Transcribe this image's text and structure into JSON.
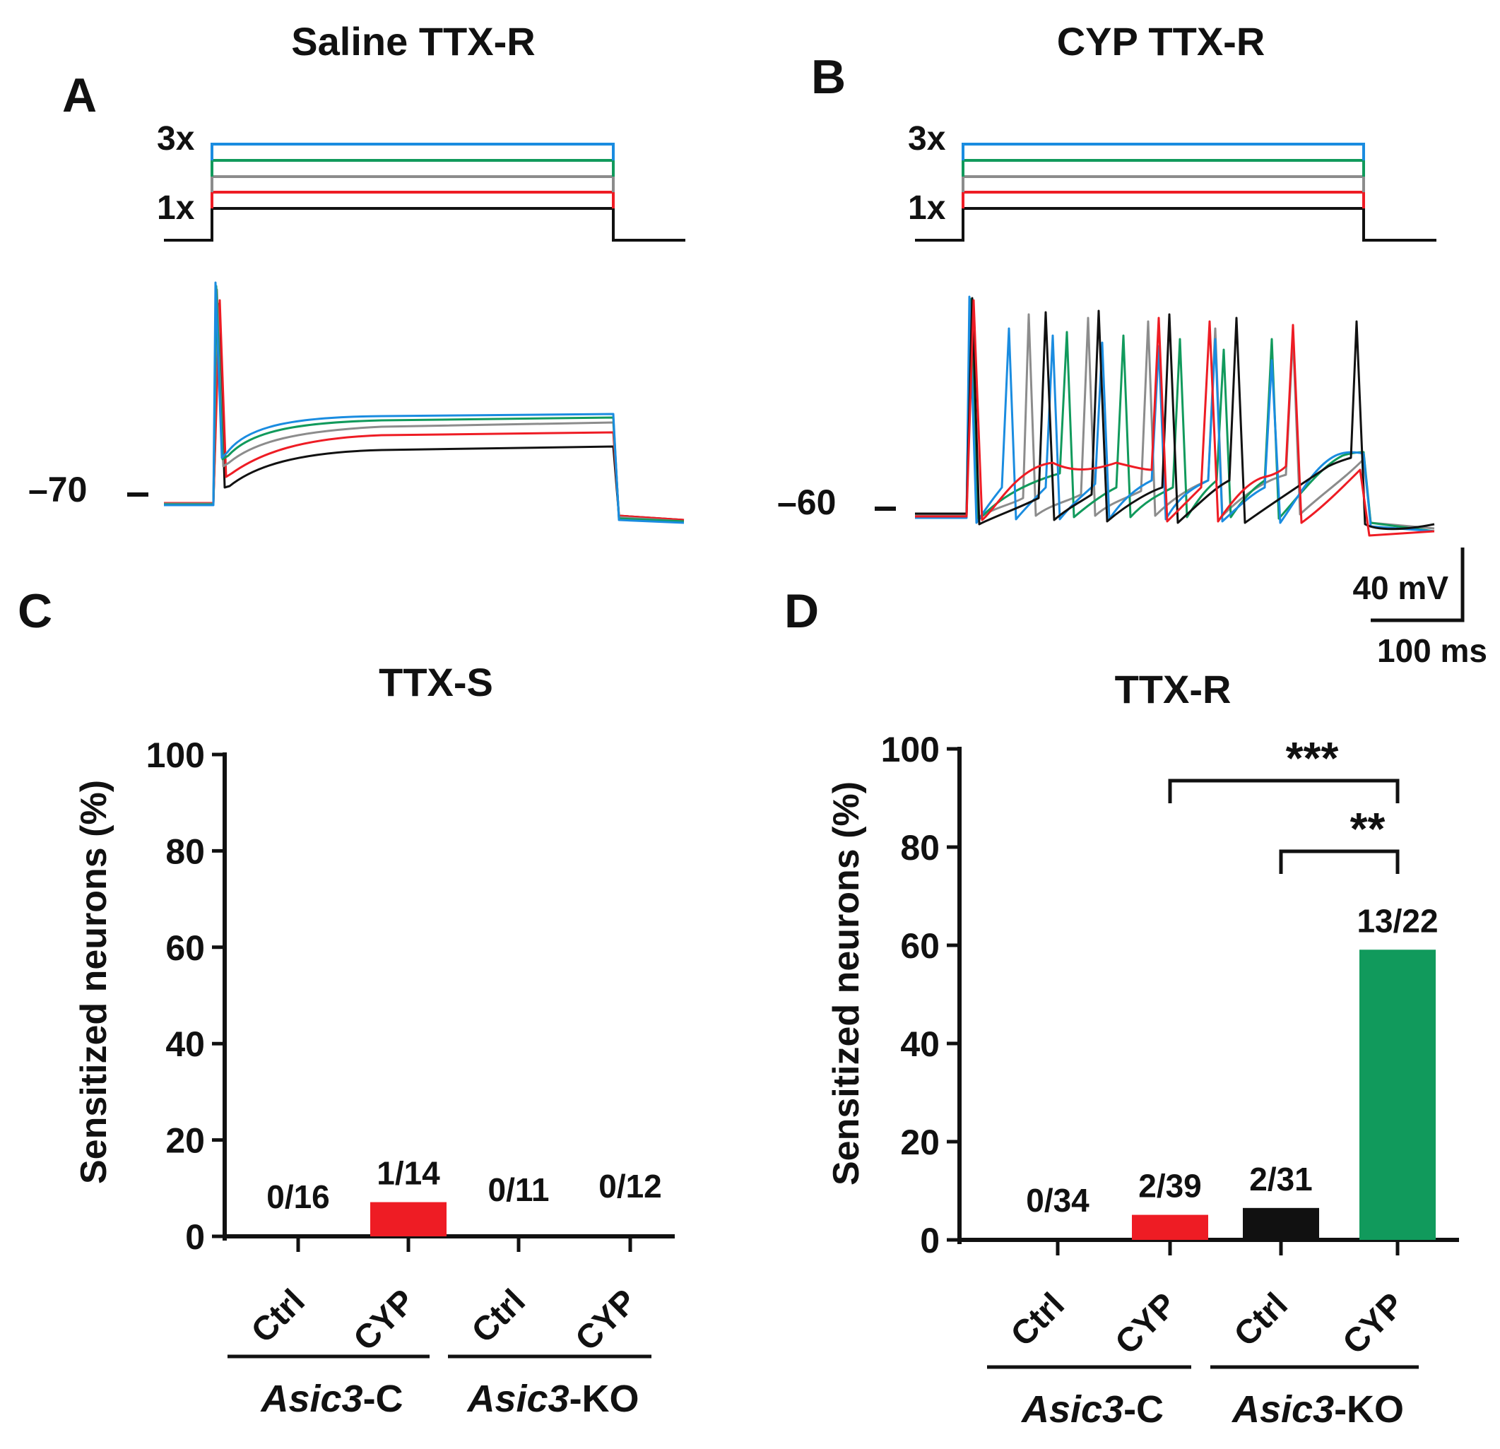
{
  "panels": {
    "A": {
      "letter": "A",
      "title": "Saline TTX-R",
      "step_top_label": "3x",
      "step_bottom_label": "1x",
      "baseline_label": "–70"
    },
    "B": {
      "letter": "B",
      "title": "CYP TTX-R",
      "step_top_label": "3x",
      "step_bottom_label": "1x",
      "baseline_label": "–60"
    },
    "C": {
      "letter": "C"
    },
    "D": {
      "letter": "D"
    }
  },
  "scale_bar": {
    "voltage": "40 mV",
    "time": "100 ms"
  },
  "colors": {
    "blue": "#1a8ce0",
    "green": "#119a5c",
    "gray": "#8c8c8c",
    "red": "#ee1c24",
    "black": "#111111"
  },
  "chart_data": [
    {
      "type": "bar",
      "panel": "C",
      "title": "TTX-S",
      "ylabel": "Sensitized neurons (%)",
      "ylim": [
        0,
        100
      ],
      "yticks": [
        "0",
        "20",
        "40",
        "60",
        "80",
        "100"
      ],
      "categories": [
        "Ctrl",
        "CYP",
        "Ctrl",
        "CYP"
      ],
      "groups": [
        {
          "name_italic": "Asic3",
          "name_suffix": "-C"
        },
        {
          "name_italic": "Asic3",
          "name_suffix": "-KO"
        }
      ],
      "values": [
        0,
        7.1,
        0,
        0
      ],
      "labels": [
        "0/16",
        "1/14",
        "0/11",
        "0/12"
      ],
      "bar_colors": [
        "#111111",
        "#ee1c24",
        "#111111",
        "#119a5c"
      ]
    },
    {
      "type": "bar",
      "panel": "D",
      "title": "TTX-R",
      "ylabel": "Sensitized neurons (%)",
      "ylim": [
        0,
        100
      ],
      "yticks": [
        "0",
        "20",
        "40",
        "60",
        "80",
        "100"
      ],
      "categories": [
        "Ctrl",
        "CYP",
        "Ctrl",
        "CYP"
      ],
      "groups": [
        {
          "name_italic": "Asic3",
          "name_suffix": "-C"
        },
        {
          "name_italic": "Asic3",
          "name_suffix": "-KO"
        }
      ],
      "values": [
        0,
        5.1,
        6.5,
        59.1
      ],
      "labels": [
        "0/34",
        "2/39",
        "2/31",
        "13/22"
      ],
      "bar_colors": [
        "#111111",
        "#ee1c24",
        "#111111",
        "#119a5c"
      ],
      "annotations": [
        {
          "text": "***",
          "from_index": 1,
          "to_index": 3
        },
        {
          "text": "**",
          "from_index": 2,
          "to_index": 3
        }
      ]
    }
  ]
}
